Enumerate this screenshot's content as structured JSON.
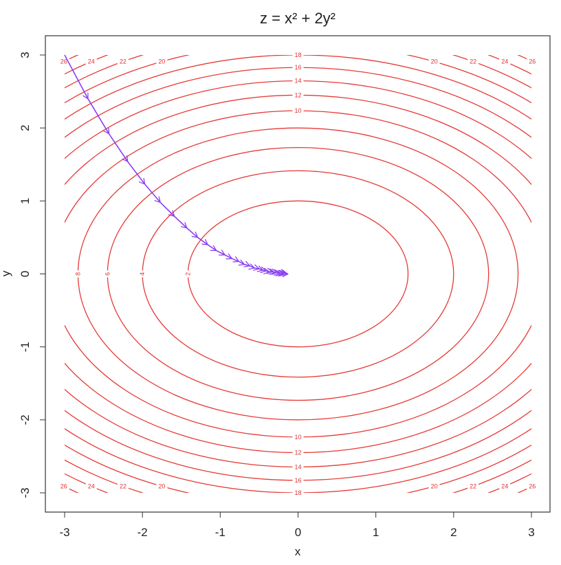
{
  "chart_data": {
    "type": "contour",
    "title": "z = x² + 2y²",
    "x_label": "x",
    "y_label": "y",
    "xlim": [
      -3,
      3
    ],
    "ylim": [
      -3,
      3
    ],
    "xticks": [
      -3,
      -2,
      -1,
      0,
      1,
      2,
      3
    ],
    "yticks": [
      -3,
      -2,
      -1,
      0,
      1,
      2,
      3
    ],
    "levels": [
      2,
      4,
      6,
      8,
      10,
      12,
      14,
      16,
      18,
      20,
      22,
      24,
      26
    ],
    "contour_color": "#e53935",
    "path": {
      "color": "#8a3ff0",
      "x": [
        -3,
        -2.7,
        -2.43,
        -2.19,
        -1.97,
        -1.77,
        -1.59,
        -1.43,
        -1.29,
        -1.16,
        -1.05,
        -0.94,
        -0.85,
        -0.76,
        -0.69,
        -0.62,
        -0.56,
        -0.5,
        -0.45,
        -0.41,
        -0.37,
        -0.33,
        -0.3,
        -0.27,
        -0.24,
        -0.22,
        -0.19,
        -0.17,
        -0.16,
        -0.14,
        -0.13
      ],
      "y": [
        3,
        2.4,
        1.92,
        1.54,
        1.23,
        0.98,
        0.79,
        0.63,
        0.5,
        0.4,
        0.32,
        0.26,
        0.21,
        0.17,
        0.13,
        0.11,
        0.08,
        0.07,
        0.05,
        0.04,
        0.03,
        0.03,
        0.02,
        0.02,
        0.01,
        0.01,
        0.01,
        0.01,
        0.01,
        0,
        0
      ]
    }
  }
}
